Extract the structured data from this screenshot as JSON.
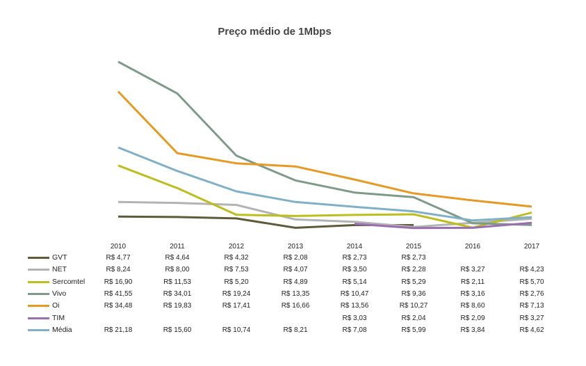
{
  "chart_data": {
    "type": "line",
    "title": "Preço médio de 1Mbps",
    "xlabel": "",
    "ylabel": "",
    "ylim": [
      0,
      42
    ],
    "grid": false,
    "legend": "table-below",
    "x": [
      "2010",
      "2011",
      "2012",
      "2013",
      "2014",
      "2015",
      "2016",
      "2017"
    ],
    "series": [
      {
        "name": "GVT",
        "color": "#5e5a3a",
        "values": [
          4.77,
          4.64,
          4.32,
          2.08,
          2.73,
          2.73,
          null,
          null
        ],
        "labels": [
          "R$ 4,77",
          "R$ 4,64",
          "R$ 4,32",
          "R$ 2,08",
          "R$ 2,73",
          "R$ 2,73",
          "",
          ""
        ]
      },
      {
        "name": "NET",
        "color": "#b3b3b3",
        "values": [
          8.24,
          8.0,
          7.53,
          4.07,
          3.5,
          2.28,
          3.27,
          4.23
        ],
        "labels": [
          "R$ 8,24",
          "R$ 8,00",
          "R$ 7,53",
          "R$ 4,07",
          "R$ 3,50",
          "R$ 2,28",
          "R$ 3,27",
          "R$ 4,23"
        ]
      },
      {
        "name": "Sercomtel",
        "color": "#bdbd1e",
        "values": [
          16.9,
          11.53,
          5.2,
          4.89,
          5.14,
          5.29,
          2.11,
          5.7
        ],
        "labels": [
          "R$ 16,90",
          "R$ 11,53",
          "R$ 5,20",
          "R$ 4,89",
          "R$ 5,14",
          "R$ 5,29",
          "R$ 2,11",
          "R$ 5,70"
        ]
      },
      {
        "name": "Vivo",
        "color": "#7e9a88",
        "values": [
          41.55,
          34.01,
          19.24,
          13.35,
          10.47,
          9.36,
          3.16,
          2.76
        ],
        "labels": [
          "R$ 41,55",
          "R$ 34,01",
          "R$ 19,24",
          "R$ 13,35",
          "R$ 10,47",
          "R$ 9,36",
          "R$ 3,16",
          "R$ 2,76"
        ]
      },
      {
        "name": "Oi",
        "color": "#e69a24",
        "values": [
          34.48,
          19.83,
          17.41,
          16.66,
          13.56,
          10.27,
          8.6,
          7.13
        ],
        "labels": [
          "R$ 34,48",
          "R$ 19,83",
          "R$ 17,41",
          "R$ 16,66",
          "R$ 13,56",
          "R$ 10,27",
          "R$ 8,60",
          "R$ 7,13"
        ]
      },
      {
        "name": "TIM",
        "color": "#9a6fb0",
        "values": [
          null,
          null,
          null,
          null,
          3.03,
          2.04,
          2.09,
          3.27
        ],
        "labels": [
          "",
          "",
          "",
          "",
          "R$ 3,03",
          "R$ 2,04",
          "R$ 2,09",
          "R$ 3,27"
        ]
      },
      {
        "name": "Média",
        "color": "#7fb0c6",
        "values": [
          21.18,
          15.6,
          10.74,
          8.21,
          7.08,
          5.99,
          3.84,
          4.62
        ],
        "labels": [
          "R$ 21,18",
          "R$ 15,60",
          "R$ 10,74",
          "R$ 8,21",
          "R$ 7,08",
          "R$ 5,99",
          "R$ 3,84",
          "R$ 4,62"
        ]
      }
    ]
  }
}
